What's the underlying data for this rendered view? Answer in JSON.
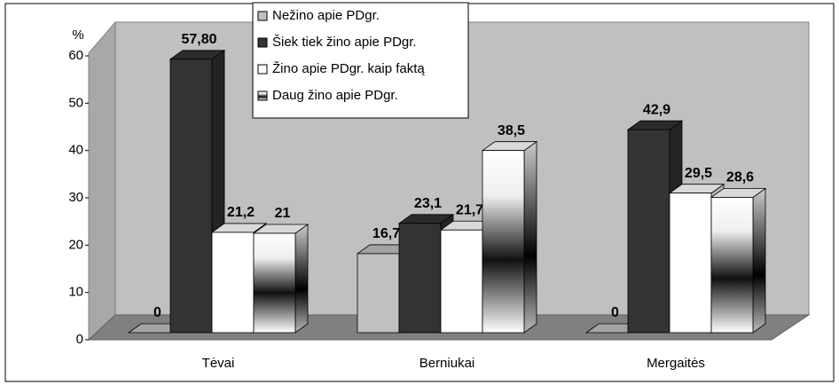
{
  "chart_data": {
    "type": "bar3d",
    "y_label": "%",
    "categories": [
      "Tėvai",
      "Berniukai",
      "Mergaitės"
    ],
    "series": [
      {
        "name": "Nežino apie PDgr.",
        "color": "#c0c0c0",
        "values": [
          0,
          16.7,
          0
        ],
        "value_labels": [
          "0",
          "16,7",
          "0"
        ]
      },
      {
        "name": "Šiek tiek žino apie PDgr.",
        "color": "#333333",
        "values": [
          57.8,
          23.1,
          42.9
        ],
        "value_labels": [
          "57,80",
          "23,1",
          "42,9"
        ]
      },
      {
        "name": "Žino apie PDgr. kaip faktą",
        "color": "#ffffff",
        "values": [
          21.2,
          21.7,
          29.5
        ],
        "value_labels": [
          "21,2",
          "21,7",
          "29,5"
        ]
      },
      {
        "name": "Daug žino apie PDgr.",
        "color": "#808080",
        "gradient": true,
        "values": [
          21,
          38.5,
          28.6
        ],
        "value_labels": [
          "21",
          "38,5",
          "28,6"
        ]
      }
    ],
    "ylim": [
      0,
      60
    ],
    "yticks": [
      0,
      10,
      20,
      30,
      40,
      50,
      60
    ],
    "grid": false
  }
}
